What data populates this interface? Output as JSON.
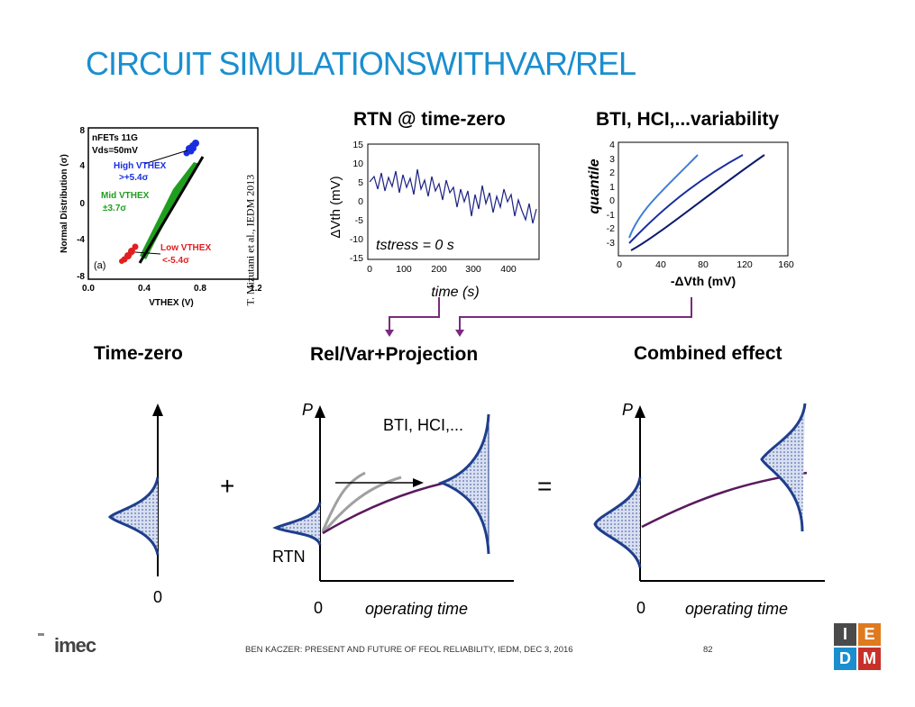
{
  "title": "CIRCUIT SIMULATIONSWITHVAR/REL",
  "citation": "T. Mizutani et al., IEDM 2013",
  "panel_a": {
    "legend_title": "nFETs 11G",
    "vds": "Vds=50mV",
    "high_label": "High VTHEX",
    "high_sigma": ">+5.4σ",
    "mid_label": "Mid VTHEX",
    "mid_sigma": "±3.7σ",
    "low_label": "Low VTHEX",
    "low_sigma": "<-5.4σ",
    "tag": "(a)",
    "xlabel": "VTHEX (V)",
    "ylabel": "Normal Distribution (σ)",
    "xticks": [
      "0.0",
      "0.4",
      "0.8",
      "1.2"
    ],
    "yticks": [
      "8",
      "4",
      "0",
      "-4",
      "-8"
    ]
  },
  "rtn": {
    "title": "RTN @ time-zero",
    "ylabel": "ΔVth (mV)",
    "xlabel": "time (s)",
    "annotation": "tstress = 0 s",
    "yticks": [
      "15",
      "10",
      "5",
      "0",
      "-5",
      "-10",
      "-15"
    ],
    "xticks": [
      "0",
      "100",
      "200",
      "300",
      "400"
    ]
  },
  "bti": {
    "title": "BTI, HCI,...variability",
    "ylabel": "quantile",
    "xlabel": "-ΔVth (mV)",
    "yticks": [
      "4",
      "3",
      "2",
      "1",
      "0",
      "-1",
      "-2",
      "-3"
    ],
    "xticks": [
      "0",
      "40",
      "80",
      "120",
      "160"
    ]
  },
  "labels": {
    "time_zero": "Time-zero",
    "rel_var": "Rel/Var+Projection",
    "combined": "Combined effect",
    "plus": "+",
    "equals": "=",
    "p": "P",
    "bti_hci": "BTI, HCI,...",
    "rtn": "RTN",
    "zero": "0",
    "operating_time": "operating time"
  },
  "footer": {
    "logo": "imec",
    "text": "BEN KACZER: PRESENT AND FUTURE OF FEOL RELIABILITY, IEDM, DEC 3, 2016",
    "page": "82",
    "iedm": [
      "I",
      "E",
      "D",
      "M"
    ]
  },
  "colors": {
    "title": "#1a8ecf",
    "navy": "#1f3e8c",
    "purple": "#5a1a5e",
    "iedm_tiles": [
      "#4a4a4a",
      "#e07a1f",
      "#1a8ecf",
      "#c8312a"
    ]
  }
}
